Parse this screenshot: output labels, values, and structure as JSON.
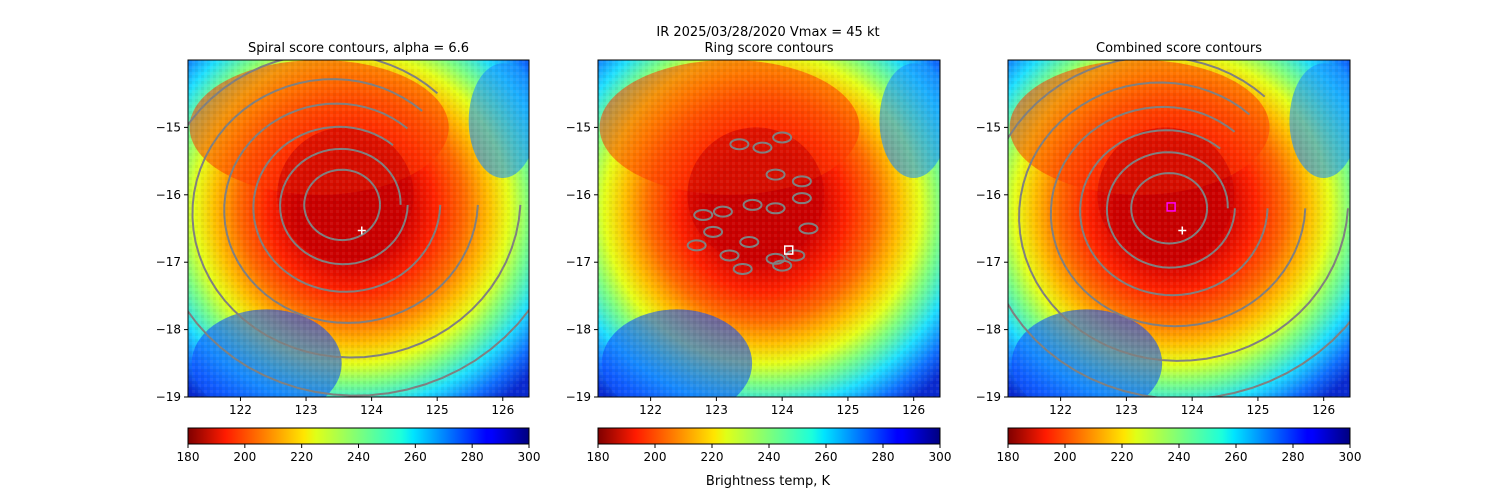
{
  "figure": {
    "suptitle_line1": "IR  2025/03/28/2020    Vmax = 45 kt",
    "colorbar_label": "Brightness temp, K"
  },
  "chart_data": [
    {
      "type": "heatmap",
      "title": "Spiral score contours, alpha =  6.6",
      "x_ticks": [
        122,
        123,
        124,
        125,
        126
      ],
      "y_ticks": [
        -15,
        -16,
        -17,
        -18,
        -19
      ],
      "x_ticklabels": [
        "122",
        "123",
        "124",
        "125",
        "126"
      ],
      "y_ticklabels": [
        "−15",
        "−16",
        "−17",
        "−18",
        "−19"
      ],
      "xlim": [
        121.2,
        126.4
      ],
      "ylim": [
        -19.0,
        -14.0
      ],
      "colormap": "jet",
      "colorbar_range": [
        180,
        300
      ],
      "colorbar_ticks": [
        180,
        200,
        220,
        240,
        260,
        280,
        300
      ],
      "colorbar_ticklabels": [
        "180",
        "200",
        "220",
        "240",
        "260",
        "280",
        "300"
      ],
      "contour_color": "#808080",
      "markers": [
        {
          "kind": "plus",
          "x": 123.85,
          "y": -16.53,
          "color": "#ffffff"
        }
      ]
    },
    {
      "type": "heatmap",
      "title": "Ring score contours",
      "x_ticks": [
        122,
        123,
        124,
        125,
        126
      ],
      "y_ticks": [
        -15,
        -16,
        -17,
        -18,
        -19
      ],
      "x_ticklabels": [
        "122",
        "123",
        "124",
        "125",
        "126"
      ],
      "y_ticklabels": [
        "−15",
        "−16",
        "−17",
        "−18",
        "−19"
      ],
      "xlim": [
        121.2,
        126.4
      ],
      "ylim": [
        -19.0,
        -14.0
      ],
      "colormap": "jet",
      "colorbar_range": [
        180,
        300
      ],
      "colorbar_ticks": [
        180,
        200,
        220,
        240,
        260,
        280,
        300
      ],
      "colorbar_ticklabels": [
        "180",
        "200",
        "220",
        "240",
        "260",
        "280",
        "300"
      ],
      "contour_color": "#808080",
      "markers": [
        {
          "kind": "square",
          "x": 124.1,
          "y": -16.82,
          "color": "#ffffff"
        }
      ]
    },
    {
      "type": "heatmap",
      "title": "Combined score contours",
      "x_ticks": [
        122,
        123,
        124,
        125,
        126
      ],
      "y_ticks": [
        -15,
        -16,
        -17,
        -18,
        -19
      ],
      "x_ticklabels": [
        "122",
        "123",
        "124",
        "125",
        "126"
      ],
      "y_ticklabels": [
        "−15",
        "−16",
        "−17",
        "−18",
        "−19"
      ],
      "xlim": [
        121.2,
        126.4
      ],
      "ylim": [
        -19.0,
        -14.0
      ],
      "colormap": "jet",
      "colorbar_range": [
        180,
        300
      ],
      "colorbar_ticks": [
        180,
        200,
        220,
        240,
        260,
        280,
        300
      ],
      "colorbar_ticklabels": [
        "180",
        "200",
        "220",
        "240",
        "260",
        "280",
        "300"
      ],
      "contour_color": "#808080",
      "markers": [
        {
          "kind": "square",
          "x": 123.68,
          "y": -16.18,
          "color": "#ff00ff"
        },
        {
          "kind": "plus",
          "x": 123.85,
          "y": -16.53,
          "color": "#ffffff"
        }
      ]
    }
  ]
}
